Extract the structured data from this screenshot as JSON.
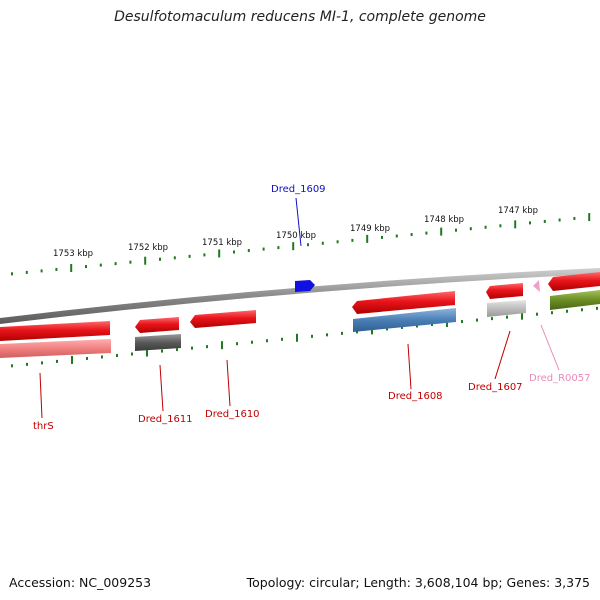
{
  "title": "Desulfotomaculum reducens MI-1, complete genome",
  "footer": {
    "accession": "Accession: NC_009253",
    "topology": "Topology: circular; Length: 3,608,104 bp; Genes: 3,375"
  },
  "scale_labels": [
    "1753 kbp",
    "1752 kbp",
    "1751 kbp",
    "1750 kbp",
    "1749 kbp",
    "1748 kbp",
    "1747 kbp"
  ],
  "gene_labels": [
    "Dred_1609",
    "thrS",
    "Dred_1611",
    "Dred_1610",
    "Dred_1608",
    "Dred_1607",
    "Dred_R0057"
  ],
  "colors": {
    "cds": "#e8151b",
    "cds_light": "#f08080",
    "blue_feature": "#1010e0",
    "steel": "#4a7fb5",
    "grey_dark": "#5a5a5a",
    "grey_light": "#bdbdbd",
    "olive": "#6b8e23",
    "rna_pink": "#f0a0c8",
    "tick": "#1e7a1e",
    "backbone": "#7a7a7a",
    "label_red": "#c00000",
    "label_blue": "#1010c0",
    "label_pink": "#e88ab8"
  }
}
